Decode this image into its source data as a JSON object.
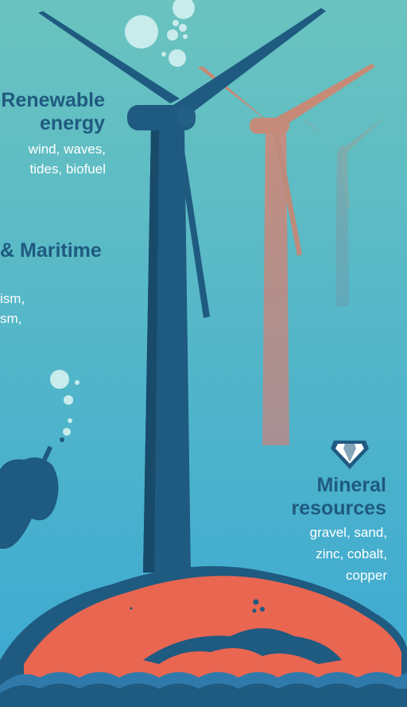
{
  "colors": {
    "sky_top": "#69c2c0",
    "sea": "#46afce",
    "navy": "#1f5a80",
    "salmon": "#e96651",
    "white": "#ffffff"
  },
  "renewable": {
    "title_line1": "Renewable",
    "title_line2": "energy",
    "desc_line1": "wind, waves,",
    "desc_line2": "tides, biofuel"
  },
  "maritime": {
    "title": "& Maritime",
    "desc_line1": "ism,",
    "desc_line2": "sm,"
  },
  "mineral": {
    "icon": "diamond-icon",
    "title_line1": "Mineral",
    "title_line2": "resources",
    "desc_line1": "gravel, sand,",
    "desc_line2": "zinc, cobalt,",
    "desc_line3": "copper"
  }
}
